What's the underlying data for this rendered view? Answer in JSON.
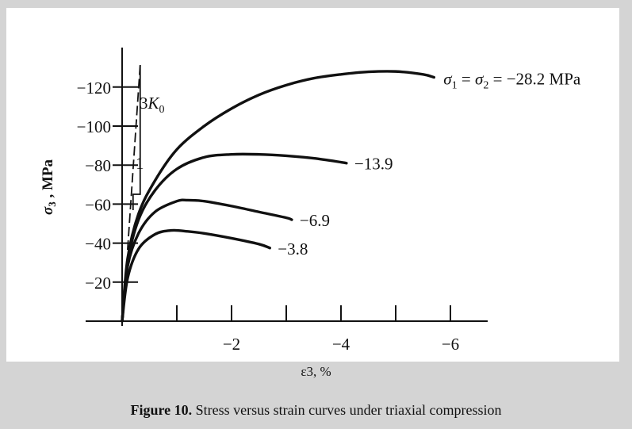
{
  "chart_data": {
    "type": "line",
    "title": "",
    "xlabel": "ε3, %",
    "ylabel": "σ3 , MPa",
    "xlim": [
      0,
      -6.7
    ],
    "ylim": [
      0,
      -135
    ],
    "x_ticks": [
      0,
      -1,
      -2,
      -3,
      -4,
      -5,
      -6
    ],
    "x_tick_labels": [
      {
        "x": -2,
        "label": "−2"
      },
      {
        "x": -4,
        "label": "−4"
      },
      {
        "x": -6,
        "label": "−6"
      }
    ],
    "y_ticks": [
      {
        "y": -20,
        "label": "−20"
      },
      {
        "y": -40,
        "label": "−40"
      },
      {
        "y": -60,
        "label": "−60"
      },
      {
        "y": -80,
        "label": "−80"
      },
      {
        "y": -100,
        "label": "−100"
      },
      {
        "y": -120,
        "label": "−120"
      }
    ],
    "grid": false,
    "series": [
      {
        "name": "−28.2",
        "label": "σ1 = σ2 = −28.2 MPa",
        "x": [
          0,
          -0.1,
          -0.3,
          -0.6,
          -1.0,
          -1.5,
          -2.0,
          -2.5,
          -3.0,
          -3.5,
          -4.0,
          -4.5,
          -5.0,
          -5.5,
          -5.7
        ],
        "y": [
          0,
          -32,
          -55,
          -72,
          -88,
          -100,
          -109,
          -116,
          -121,
          -124.5,
          -126.5,
          -127.8,
          -128,
          -126.5,
          -125
        ]
      },
      {
        "name": "−13.9",
        "label": "−13.9",
        "x": [
          0,
          -0.1,
          -0.3,
          -0.6,
          -1.0,
          -1.5,
          -2.0,
          -2.5,
          -3.0,
          -3.5,
          -4.0,
          -4.1
        ],
        "y": [
          0,
          -30,
          -52,
          -67,
          -78,
          -84,
          -85.5,
          -85.5,
          -84.8,
          -83.5,
          -81.5,
          -81
        ]
      },
      {
        "name": "−6.9",
        "label": "−6.9",
        "x": [
          0,
          -0.1,
          -0.3,
          -0.6,
          -1.0,
          -1.2,
          -1.5,
          -2.0,
          -2.5,
          -3.0,
          -3.1
        ],
        "y": [
          0,
          -28,
          -45,
          -56,
          -61.5,
          -62,
          -61.5,
          -59,
          -56,
          -53,
          -52
        ]
      },
      {
        "name": "−3.8",
        "label": "−3.8",
        "x": [
          0,
          -0.1,
          -0.3,
          -0.6,
          -0.9,
          -1.2,
          -1.5,
          -2.0,
          -2.5,
          -2.7
        ],
        "y": [
          0,
          -22,
          -37,
          -44.5,
          -46.5,
          -46,
          -45,
          -42.5,
          -39.5,
          -37.5
        ]
      }
    ],
    "annotations": [
      {
        "text": "3K0",
        "note": "initial bulk modulus slope"
      },
      {
        "text": "1"
      }
    ]
  },
  "figure": {
    "caption_label": "Figure 10.",
    "caption_text": "Stress versus strain curves under triaxial compression"
  }
}
